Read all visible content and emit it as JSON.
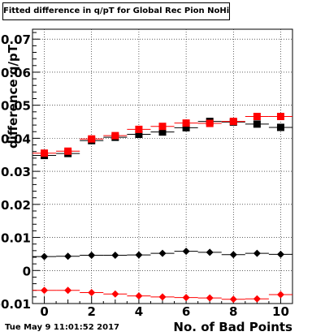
{
  "chart_data": {
    "type": "scatter",
    "title": "Fitted difference in q/pT for Global Rec Pion NoHits",
    "xlabel": "No. of Bad Points",
    "ylabel": "difference q/pT",
    "xlim": [
      -0.5,
      10.5
    ],
    "ylim": [
      -0.01,
      0.073
    ],
    "x_ticks": [
      0,
      2,
      4,
      6,
      8,
      10
    ],
    "y_ticks": [
      -0.01,
      0,
      0.01,
      0.02,
      0.03,
      0.04,
      0.05,
      0.06,
      0.07
    ],
    "y_tick_labels": [
      "-0.01",
      "0",
      "0.01",
      "0.02",
      "0.03",
      "0.04",
      "0.05",
      "0.06",
      "0.07"
    ],
    "grid": true,
    "x": [
      0,
      1,
      2,
      3,
      4,
      5,
      6,
      7,
      8,
      9,
      10
    ],
    "series": [
      {
        "color": "#000000",
        "marker": "square",
        "values": [
          0.0348,
          0.0354,
          0.0393,
          0.0403,
          0.0412,
          0.0419,
          0.0432,
          0.0451,
          0.0449,
          0.0443,
          0.0433
        ]
      },
      {
        "color": "#ff0000",
        "marker": "square",
        "values": [
          0.0355,
          0.0361,
          0.0398,
          0.0408,
          0.0427,
          0.0436,
          0.0446,
          0.0445,
          0.0451,
          0.0466,
          0.0466
        ]
      },
      {
        "color": "#000000",
        "marker": "diamond",
        "values": [
          0.0042,
          0.0043,
          0.0046,
          0.0046,
          0.0047,
          0.0052,
          0.0058,
          0.0055,
          0.0048,
          0.0052,
          0.0049
        ]
      },
      {
        "color": "#ff0000",
        "marker": "diamond",
        "values": [
          -0.006,
          -0.006,
          -0.0067,
          -0.0071,
          -0.0077,
          -0.008,
          -0.0082,
          -0.0083,
          -0.0087,
          -0.0086,
          -0.0073
        ]
      }
    ]
  },
  "footer": {
    "timestamp": "Tue May  9 11:01:52 2017"
  }
}
